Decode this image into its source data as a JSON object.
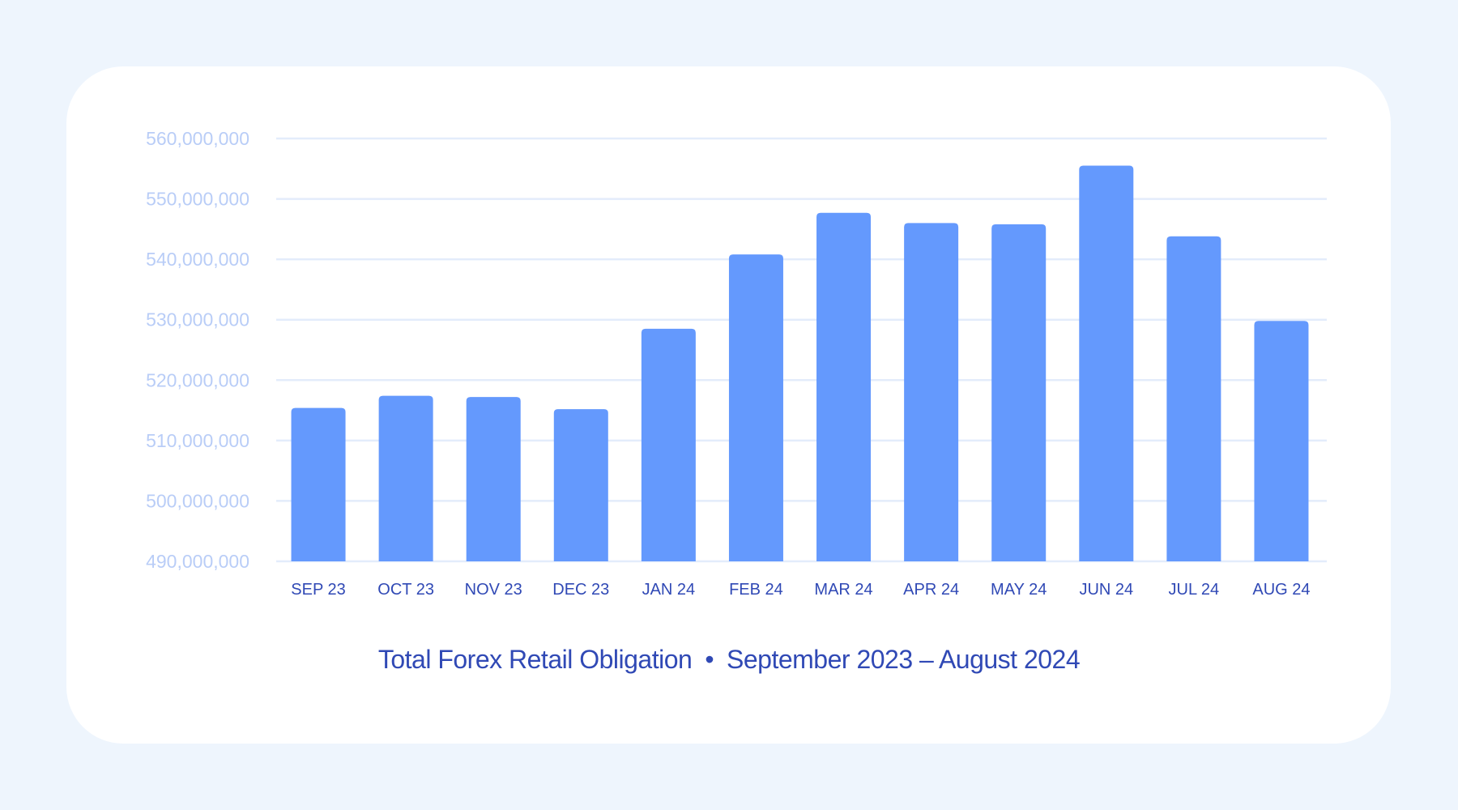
{
  "chart_data": {
    "type": "bar",
    "title": "Total Forex Retail Obligation",
    "subtitle": "September 2023 – August 2024",
    "categories": [
      "SEP 23",
      "OCT 23",
      "NOV 23",
      "DEC 23",
      "JAN 24",
      "FEB 24",
      "MAR 24",
      "APR 24",
      "MAY 24",
      "JUN 24",
      "JUL 24",
      "AUG 24"
    ],
    "values": [
      515400000,
      517400000,
      517200000,
      515200000,
      528500000,
      540800000,
      547700000,
      546000000,
      545800000,
      555500000,
      543800000,
      529800000
    ],
    "ylim": [
      490000000,
      560000000
    ],
    "yticks": [
      "490,000,000",
      "500,000,000",
      "510,000,000",
      "520,000,000",
      "530,000,000",
      "540,000,000",
      "550,000,000",
      "560,000,000"
    ],
    "grid": true,
    "colors": {
      "bar": "#6499fd",
      "grid": "#e3ecfb",
      "ytick": "#b9cdf7",
      "xtick": "#3049b5",
      "caption": "#3049b5"
    }
  },
  "caption": {
    "title": "Total Forex Retail Obligation",
    "separator": "•",
    "subtitle": "September 2023 – August 2024"
  }
}
